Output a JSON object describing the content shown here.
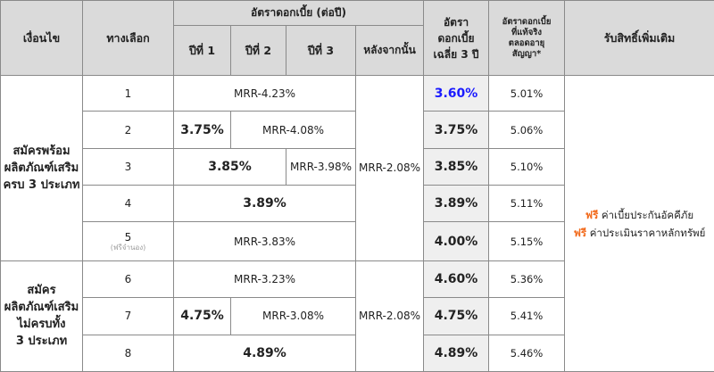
{
  "header": {
    "condition": "เงื่อนไข",
    "option": "ทางเลือก",
    "rate_group": "อัตราดอกเบี้ย (ต่อปี)",
    "year1": "ปีที่ 1",
    "year2": "ปีที่ 2",
    "year3": "ปีที่ 3",
    "after": "หลังจากนั้น",
    "avg_line1": "อัตรา",
    "avg_line2": "ดอกเบี้ย",
    "avg_line3": "เฉลี่ย 3 ปี",
    "eff_line1": "อัตราดอกเบี้ย",
    "eff_line2": "ที่แท้จริง",
    "eff_line3": "ตลอดอายุ",
    "eff_line4": "สัญญา*",
    "benefit": "รับสิทธิ์เพิ่มเติม"
  },
  "groups": {
    "g1_line1": "สมัครพร้อม",
    "g1_line2": "ผลิตภัณฑ์เสริม",
    "g1_line3": "ครบ 3 ประเภท",
    "g2_line1": "สมัคร",
    "g2_line2": "ผลิตภัณฑ์เสริม",
    "g2_line3": "ไม่ครบทั้ง",
    "g2_line4": "3 ประเภท"
  },
  "after_rate_1": "MRR-2.08%",
  "after_rate_2": "MRR-2.08%",
  "rows": [
    {
      "option": "1",
      "rate_all": "MRR-4.23%",
      "avg": "3.60%",
      "effective": "5.01%"
    },
    {
      "option": "2",
      "y1": "3.75%",
      "y23": "MRR-4.08%",
      "avg": "3.75%",
      "effective": "5.06%"
    },
    {
      "option": "3",
      "y12": "3.85%",
      "y3": "MRR-3.98%",
      "avg": "3.85%",
      "effective": "5.10%"
    },
    {
      "option": "4",
      "y123": "3.89%",
      "avg": "3.89%",
      "effective": "5.11%"
    },
    {
      "option": "5",
      "note": "(ฟรีจำนอง)",
      "rate_all": "MRR-3.83%",
      "avg": "4.00%",
      "effective": "5.15%"
    },
    {
      "option": "6",
      "rate_all": "MRR-3.23%",
      "avg": "4.60%",
      "effective": "5.36%"
    },
    {
      "option": "7",
      "y1": "4.75%",
      "y23": "MRR-3.08%",
      "avg": "4.75%",
      "effective": "5.41%"
    },
    {
      "option": "8",
      "y123": "4.89%",
      "avg": "4.89%",
      "effective": "5.46%"
    }
  ],
  "benefits": {
    "free_label_1": "ฟรี",
    "item_1": "ค่าเบี้ยประกันอัคคีภัย",
    "free_label_2": "ฟรี",
    "item_2": "ค่าประเมินราคาหลักทรัพย์"
  },
  "colors": {
    "highlight_blue": "#1a1aff",
    "free_orange": "#f26b1d",
    "header_grey": "#dadada",
    "avg_grey": "#efefef"
  }
}
